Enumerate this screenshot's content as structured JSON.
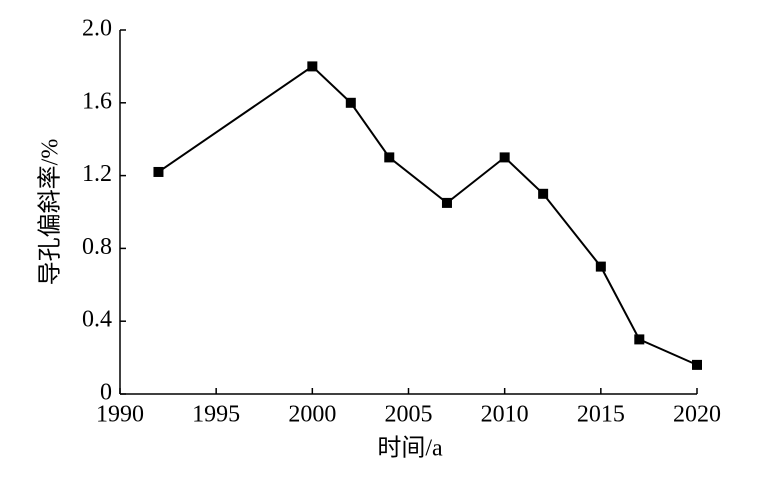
{
  "chart_data": {
    "type": "line",
    "x_label": "时间/a",
    "y_label": "导孔偏斜率/%",
    "x": [
      1992,
      2000,
      2002,
      2004,
      2007,
      2010,
      2012,
      2015,
      2017,
      2020
    ],
    "values": [
      1.22,
      1.8,
      1.6,
      1.3,
      1.05,
      1.3,
      1.1,
      0.7,
      0.3,
      0.16
    ],
    "color": "#000000",
    "xlim": [
      1990,
      2020
    ],
    "xticks": [
      1990,
      1995,
      2000,
      2005,
      2010,
      2015,
      2020
    ],
    "ylim": [
      0,
      2
    ],
    "yticks": [
      0,
      0.4,
      0.8,
      1.2,
      1.6,
      {
        "value": 2,
        "label": "2.0"
      }
    ]
  }
}
